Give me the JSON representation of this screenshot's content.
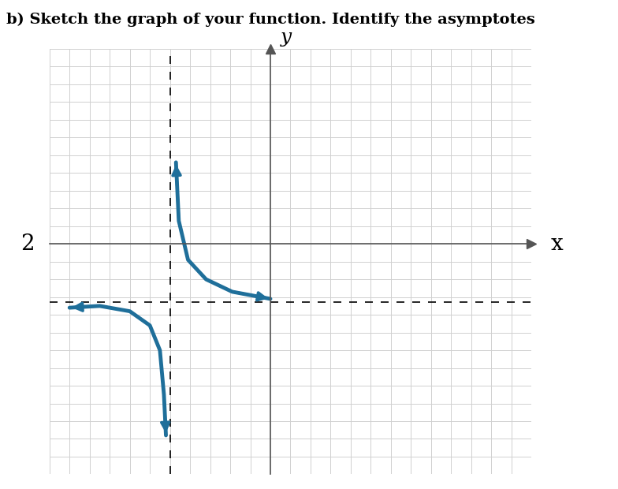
{
  "chart_data": {
    "type": "line",
    "title": "b) Sketch the graph of your function. Identify the asymptotes",
    "x_label": "x",
    "y_label": "y",
    "annotations": [
      {
        "text": "2"
      }
    ],
    "series": [
      {
        "color": "#1f6f9a",
        "marker": "none",
        "line_style": "solid",
        "x": [
          -4.7,
          -4.56,
          -4.1,
          -3.2,
          -1.9,
          0.0
        ],
        "values": [
          4.6,
          1.3,
          -0.9,
          -2.0,
          -2.7,
          -3.1
        ]
      },
      {
        "color": "#1f6f9a",
        "marker": "none",
        "line_style": "solid",
        "x": [
          -10.0,
          -8.5,
          -7.0,
          -6.0,
          -5.5,
          -5.3,
          -5.2
        ],
        "values": [
          -3.6,
          -3.5,
          -3.8,
          -4.6,
          -6.0,
          -8.5,
          -10.8
        ]
      }
    ],
    "asymptotes": {
      "x": -5,
      "y": -3.3
    },
    "xlim": [
      -11,
      13
    ],
    "ylim": [
      -13,
      11
    ],
    "xticks": [
      -11,
      -10,
      -9,
      -8,
      -7,
      -6,
      -5,
      -4,
      -3,
      -2,
      -1,
      0,
      1,
      2,
      3,
      4,
      5,
      6,
      7,
      8,
      9,
      10,
      11,
      12,
      13
    ],
    "yticks": [
      -13,
      -12,
      -11,
      -10,
      -9,
      -8,
      -7,
      -6,
      -5,
      -4,
      -3,
      -2,
      -1,
      0,
      1,
      2,
      3,
      4,
      5,
      6,
      7,
      8,
      9,
      10,
      11
    ],
    "grid": true,
    "tick_labels": false
  }
}
